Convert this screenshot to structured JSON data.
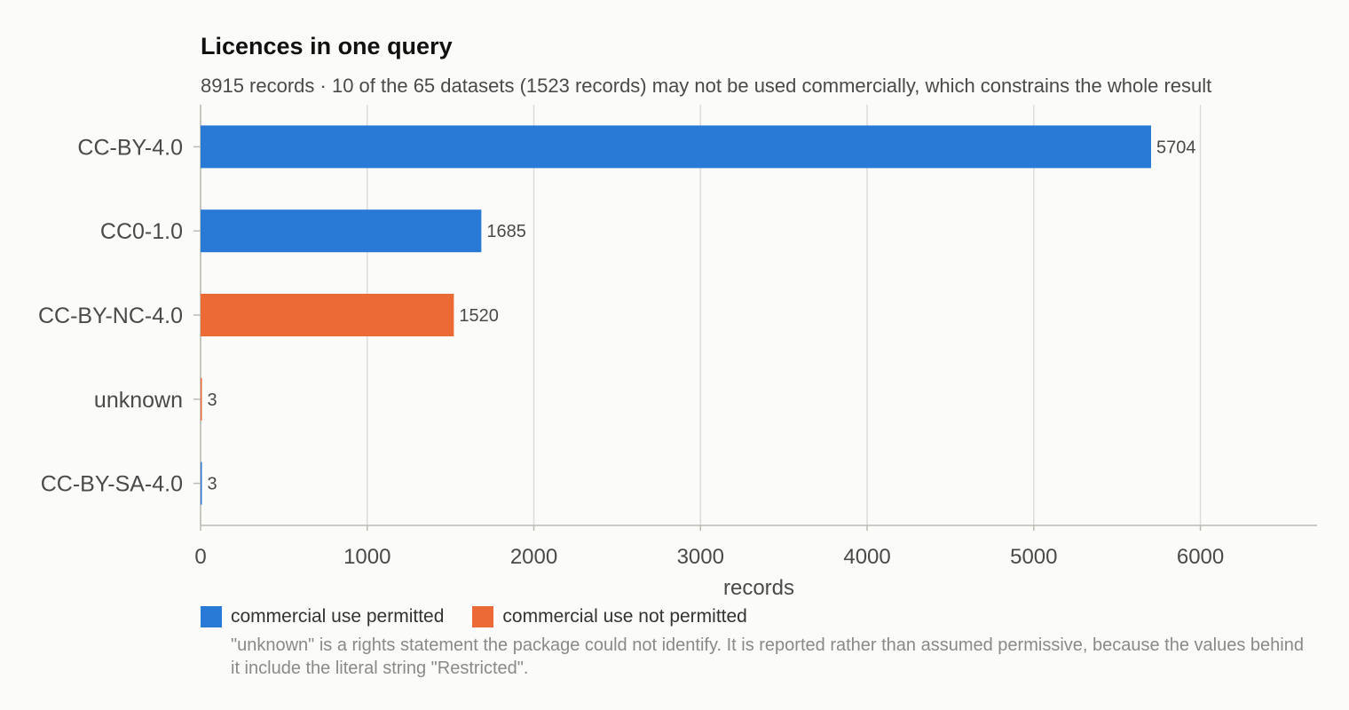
{
  "colors": {
    "permitted": "#2979d6",
    "not_permitted": "#ec6a35",
    "grid": "#dcdcd8",
    "axis": "#b9bcb2",
    "text": "#4a4a4a"
  },
  "chart_data": {
    "type": "bar",
    "orientation": "horizontal",
    "title": "Licences in one query",
    "subtitle": "8915 records · 10 of the 65 datasets (1523 records) may not be used commercially, which constrains the whole result",
    "xlabel": "records",
    "ylabel": "",
    "xlim": [
      0,
      6700
    ],
    "xticks": [
      0,
      1000,
      2000,
      3000,
      4000,
      5000,
      6000
    ],
    "grid": true,
    "legend_position": "bottom-left",
    "categories": [
      "CC-BY-4.0",
      "CC0-1.0",
      "CC-BY-NC-4.0",
      "unknown",
      "CC-BY-SA-4.0"
    ],
    "values": [
      5704,
      1685,
      1520,
      3,
      3
    ],
    "commercial": [
      "permitted",
      "permitted",
      "not_permitted",
      "not_permitted",
      "permitted"
    ],
    "legend": [
      {
        "key": "permitted",
        "label": "commercial use permitted"
      },
      {
        "key": "not_permitted",
        "label": "commercial use not permitted"
      }
    ],
    "footnote": "\"unknown\" is a rights statement the package could not identify. It is reported rather than assumed permissive, because the values behind it include the literal string \"Restricted\"."
  }
}
